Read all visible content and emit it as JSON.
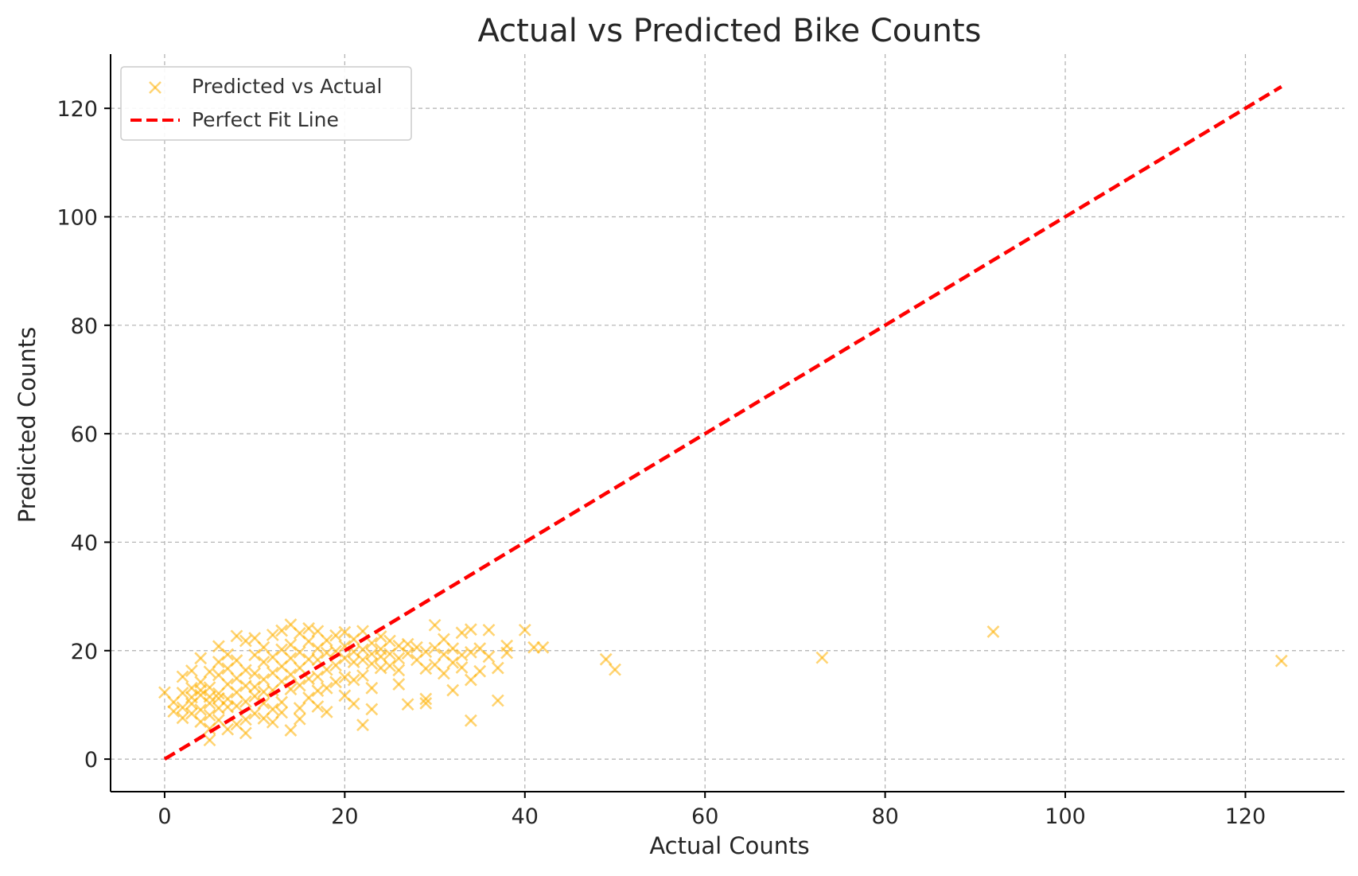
{
  "chart_data": {
    "type": "scatter",
    "title": "Actual vs Predicted Bike Counts",
    "xlabel": "Actual Counts",
    "ylabel": "Predicted Counts",
    "xlim": [
      -6,
      131
    ],
    "ylim": [
      -6,
      130
    ],
    "x_ticks": [
      0,
      20,
      40,
      60,
      80,
      100,
      120
    ],
    "y_ticks": [
      0,
      20,
      40,
      60,
      80,
      100,
      120
    ],
    "x_tick_labels": [
      "0",
      "20",
      "40",
      "60",
      "80",
      "100",
      "120"
    ],
    "y_tick_labels": [
      "0",
      "20",
      "40",
      "60",
      "80",
      "100",
      "120"
    ],
    "grid": true,
    "legend_position": "top-left",
    "legend": [
      "Predicted vs Actual",
      "Perfect Fit Line"
    ],
    "colors": {
      "scatter": "#ffb000",
      "fit_line": "#ff0000"
    },
    "series": [
      {
        "name": "Predicted vs Actual",
        "type": "scatter",
        "marker": "x",
        "points": [
          [
            0,
            12.3
          ],
          [
            1,
            10.5
          ],
          [
            1,
            8.8
          ],
          [
            2,
            9.5
          ],
          [
            2,
            12.2
          ],
          [
            2,
            15.2
          ],
          [
            2,
            7.6
          ],
          [
            3,
            10.2
          ],
          [
            3,
            8.4
          ],
          [
            3,
            13.1
          ],
          [
            3,
            11.4
          ],
          [
            3,
            16.3
          ],
          [
            4,
            9.1
          ],
          [
            4,
            11.8
          ],
          [
            4,
            14.2
          ],
          [
            4,
            6.9
          ],
          [
            4,
            18.6
          ],
          [
            4,
            12.7
          ],
          [
            5,
            3.5
          ],
          [
            5,
            10.3
          ],
          [
            5,
            13.2
          ],
          [
            5,
            8.1
          ],
          [
            5,
            16.1
          ],
          [
            5,
            11.5
          ],
          [
            5,
            5.6
          ],
          [
            6,
            12.1
          ],
          [
            6,
            20.8
          ],
          [
            6,
            9.4
          ],
          [
            6,
            15.5
          ],
          [
            6,
            7.2
          ],
          [
            6,
            17.9
          ],
          [
            6,
            11.2
          ],
          [
            7,
            9.6
          ],
          [
            7,
            13.8
          ],
          [
            7,
            5.5
          ],
          [
            7,
            16.7
          ],
          [
            7,
            11.1
          ],
          [
            7,
            19.3
          ],
          [
            8,
            12.3
          ],
          [
            8,
            6.4
          ],
          [
            8,
            14.9
          ],
          [
            8,
            22.7
          ],
          [
            8,
            9.8
          ],
          [
            8,
            18.2
          ],
          [
            9,
            13.5
          ],
          [
            9,
            7.3
          ],
          [
            9,
            16.4
          ],
          [
            9,
            10.6
          ],
          [
            9,
            21.8
          ],
          [
            9,
            4.8
          ],
          [
            10,
            11.6
          ],
          [
            10,
            15.8
          ],
          [
            10,
            8.4
          ],
          [
            10,
            19.2
          ],
          [
            10,
            13.3
          ],
          [
            10,
            22.3
          ],
          [
            11,
            10.3
          ],
          [
            11,
            14.7
          ],
          [
            11,
            17.9
          ],
          [
            11,
            7.5
          ],
          [
            11,
            20.6
          ],
          [
            11,
            12.4
          ],
          [
            12,
            15.9
          ],
          [
            12,
            9.2
          ],
          [
            12,
            18.8
          ],
          [
            12,
            22.9
          ],
          [
            12,
            12.7
          ],
          [
            12,
            6.8
          ],
          [
            13,
            14.3
          ],
          [
            13,
            20.2
          ],
          [
            13,
            10.5
          ],
          [
            13,
            17.1
          ],
          [
            13,
            23.7
          ],
          [
            13,
            8.6
          ],
          [
            14,
            12.9
          ],
          [
            14,
            18.6
          ],
          [
            14,
            24.8
          ],
          [
            14,
            15.6
          ],
          [
            14,
            5.3
          ],
          [
            14,
            21.1
          ],
          [
            15,
            13.6
          ],
          [
            15,
            19.7
          ],
          [
            15,
            9.4
          ],
          [
            15,
            16.8
          ],
          [
            15,
            23.2
          ],
          [
            15,
            7.4
          ],
          [
            16,
            14.8
          ],
          [
            16,
            21.7
          ],
          [
            16,
            11.3
          ],
          [
            16,
            18.4
          ],
          [
            16,
            24.1
          ],
          [
            17,
            15.2
          ],
          [
            17,
            20.4
          ],
          [
            17,
            12.6
          ],
          [
            17,
            18.3
          ],
          [
            17,
            23.6
          ],
          [
            17,
            9.7
          ],
          [
            18,
            16.5
          ],
          [
            18,
            21.9
          ],
          [
            18,
            13.1
          ],
          [
            18,
            19.6
          ],
          [
            18,
            8.7
          ],
          [
            19,
            17.3
          ],
          [
            19,
            22.8
          ],
          [
            19,
            14.2
          ],
          [
            19,
            19.9
          ],
          [
            20,
            18.6
          ],
          [
            20,
            23.4
          ],
          [
            20,
            15.1
          ],
          [
            20,
            11.7
          ],
          [
            20,
            20.8
          ],
          [
            21,
            17.9
          ],
          [
            21,
            22.1
          ],
          [
            21,
            10.2
          ],
          [
            21,
            14.6
          ],
          [
            21,
            19.8
          ],
          [
            22,
            18.3
          ],
          [
            22,
            23.6
          ],
          [
            22,
            6.3
          ],
          [
            22,
            15.4
          ],
          [
            22,
            20.2
          ],
          [
            23,
            17.6
          ],
          [
            23,
            21.4
          ],
          [
            23,
            9.2
          ],
          [
            23,
            13.1
          ],
          [
            23,
            19.4
          ],
          [
            24,
            18.9
          ],
          [
            24,
            22.6
          ],
          [
            24,
            16.8
          ],
          [
            24,
            20.3
          ],
          [
            25,
            19.4
          ],
          [
            25,
            21.8
          ],
          [
            25,
            17.2
          ],
          [
            26,
            18.6
          ],
          [
            26,
            13.8
          ],
          [
            26,
            20.9
          ],
          [
            26,
            16.4
          ],
          [
            27,
            19.5
          ],
          [
            27,
            10.1
          ],
          [
            27,
            21.2
          ],
          [
            28,
            18.3
          ],
          [
            28,
            20.6
          ],
          [
            29,
            16.7
          ],
          [
            29,
            10.3
          ],
          [
            29,
            11.1
          ],
          [
            29,
            19.8
          ],
          [
            30,
            24.7
          ],
          [
            30,
            17.4
          ],
          [
            30,
            20.5
          ],
          [
            31,
            15.8
          ],
          [
            31,
            22.1
          ],
          [
            31,
            19.3
          ],
          [
            32,
            12.7
          ],
          [
            32,
            17.8
          ],
          [
            32,
            20.4
          ],
          [
            33,
            23.3
          ],
          [
            33,
            16.9
          ],
          [
            33,
            19.2
          ],
          [
            34,
            23.9
          ],
          [
            34,
            14.6
          ],
          [
            34,
            7.1
          ],
          [
            34,
            19.7
          ],
          [
            35,
            16.2
          ],
          [
            35,
            20.4
          ],
          [
            36,
            23.8
          ],
          [
            36,
            18.9
          ],
          [
            37,
            16.8
          ],
          [
            37,
            10.8
          ],
          [
            38,
            19.6
          ],
          [
            38,
            20.9
          ],
          [
            40,
            23.8
          ],
          [
            41,
            20.6
          ],
          [
            42,
            20.6
          ],
          [
            49,
            18.4
          ],
          [
            50,
            16.5
          ],
          [
            73,
            18.7
          ],
          [
            92,
            23.5
          ],
          [
            124,
            18.1
          ]
        ]
      },
      {
        "name": "Perfect Fit Line",
        "type": "line",
        "style": "dashed",
        "points": [
          [
            0,
            0
          ],
          [
            124,
            124
          ]
        ]
      }
    ]
  }
}
